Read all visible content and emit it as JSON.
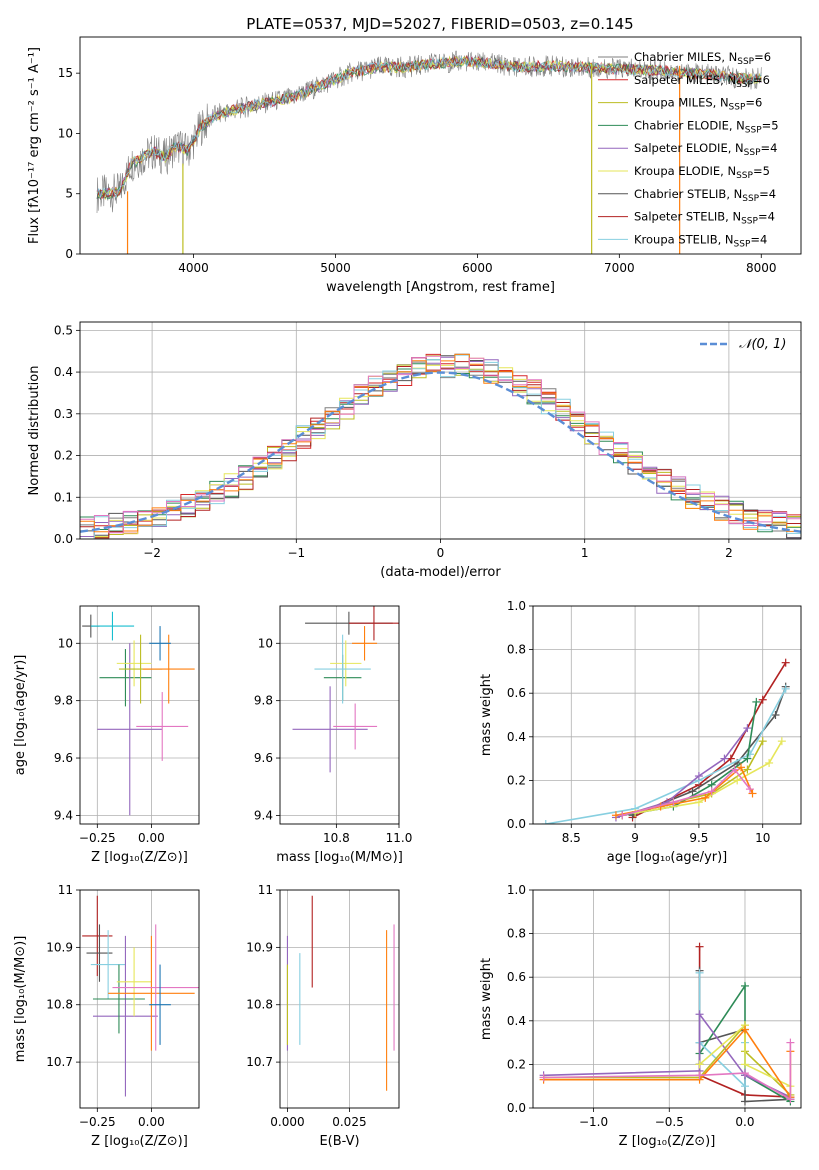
{
  "colors": {
    "c1": "#7f7f7f",
    "c2": "#d62728",
    "c3": "#bcbd22",
    "c4": "#2e8b57",
    "c5": "#9467bd",
    "c6": "#e6e65a",
    "c7": "#555555",
    "c8": "#b22222",
    "c9": "#87cfe0",
    "c10": "#ff7f0e",
    "c11": "#e377c2",
    "c12": "#17becf",
    "c13": "#1f77b4",
    "nline": "#5b8ed6"
  },
  "chart_data": [
    {
      "id": "spectrum",
      "type": "line",
      "title": "PLATE=0537, MJD=52027, FIBERID=0503, z=0.145",
      "xlabel": "wavelength [Angstrom, rest frame]",
      "ylabel": "Flux [fλ10⁻¹⁷ erg cm⁻² s⁻¹ A⁻¹]",
      "xlim": [
        3200,
        8280
      ],
      "ylim": [
        0,
        18
      ],
      "xticks": [
        4000,
        5000,
        6000,
        7000,
        8000
      ],
      "yticks": [
        0,
        5,
        10,
        15
      ],
      "legend": "upper right",
      "series": [
        {
          "name": "Chabrier MILES, N_SSP=6",
          "color": "c1"
        },
        {
          "name": "Salpeter MILES, N_SSP=6",
          "color": "c2"
        },
        {
          "name": "Kroupa MILES, N_SSP=6",
          "color": "c3"
        },
        {
          "name": "Chabrier ELODIE, N_SSP=5",
          "color": "c4"
        },
        {
          "name": "Salpeter ELODIE, N_SSP=4",
          "color": "c5"
        },
        {
          "name": "Kroupa ELODIE, N_SSP=5",
          "color": "c6"
        },
        {
          "name": "Chabrier STELIB, N_SSP=4",
          "color": "c7"
        },
        {
          "name": "Salpeter STELIB, N_SSP=4",
          "color": "c8"
        },
        {
          "name": "Kroupa STELIB, N_SSP=4",
          "color": "c9"
        }
      ],
      "envelope": {
        "x": [
          3320,
          3400,
          3480,
          3560,
          3640,
          3720,
          3800,
          3880,
          3960,
          4050,
          4150,
          4300,
          4500,
          4700,
          4900,
          5100,
          5300,
          5500,
          5700,
          5900,
          6100,
          6300,
          6500,
          6700,
          6900,
          7100,
          7300,
          7500,
          7700,
          7900,
          8000
        ],
        "y": [
          5.0,
          5.0,
          5.2,
          7.5,
          8.0,
          8.5,
          8.0,
          9.0,
          8.5,
          10.5,
          11.5,
          12.0,
          12.5,
          13.0,
          14.0,
          15.0,
          15.5,
          15.5,
          15.8,
          16.0,
          15.8,
          15.5,
          15.6,
          15.5,
          15.4,
          15.3,
          15.2,
          15.0,
          14.8,
          14.5,
          14.6
        ]
      },
      "drops": [
        {
          "x": 3535,
          "y_top": 5.2,
          "color": "c10"
        },
        {
          "x": 3925,
          "y_top": 7.5,
          "color": "c3"
        },
        {
          "x": 6805,
          "y_top": 15.8,
          "color": "c3"
        },
        {
          "x": 7425,
          "y_top": 15.6,
          "color": "c10"
        }
      ]
    },
    {
      "id": "residuals",
      "type": "step",
      "xlabel": "(data-model)/error",
      "ylabel": "Normed distribution",
      "xlim": [
        -2.5,
        2.5
      ],
      "ylim": [
        0,
        0.52
      ],
      "xticks": [
        -2,
        -1,
        0,
        1,
        2
      ],
      "yticks": [
        0.0,
        0.1,
        0.2,
        0.3,
        0.4,
        0.5
      ],
      "legend": "upper right",
      "reference": {
        "name": "𝒩(0, 1)",
        "mean": 0,
        "sigma": 1,
        "color": "nline"
      },
      "bin_width": 0.1
    },
    {
      "id": "age-vs-z",
      "type": "errorbar",
      "xlabel": "Z [log₁₀(Z/Z⊙)]",
      "ylabel": "age  [log₁₀(age/yr)]",
      "xlim": [
        -0.33,
        0.22
      ],
      "ylim": [
        9.37,
        10.13
      ],
      "xticks": [
        -0.25,
        0.0
      ],
      "xticklabels": [
        "−0.25",
        "0.00"
      ],
      "yticks": [
        9.4,
        9.6,
        9.8,
        10.0
      ],
      "points": [
        {
          "x": -0.28,
          "y": 10.06,
          "xerr": 0.04,
          "yerr": 0.04,
          "color": "c7"
        },
        {
          "x": -0.18,
          "y": 10.06,
          "xerr": 0.1,
          "yerr": 0.05,
          "color": "c12"
        },
        {
          "x": -0.12,
          "y": 9.88,
          "xerr": 0.12,
          "yerr": 0.1,
          "color": "c4"
        },
        {
          "x": -0.1,
          "y": 9.7,
          "xerr": 0.15,
          "yerr": 0.3,
          "color": "c5"
        },
        {
          "x": -0.08,
          "y": 9.93,
          "xerr": 0.08,
          "yerr": 0.08,
          "color": "c6"
        },
        {
          "x": -0.05,
          "y": 9.91,
          "xerr": 0.1,
          "yerr": 0.12,
          "color": "c3"
        },
        {
          "x": 0.08,
          "y": 9.91,
          "xerr": 0.12,
          "yerr": 0.12,
          "color": "c10"
        },
        {
          "x": 0.05,
          "y": 9.71,
          "xerr": 0.12,
          "yerr": 0.12,
          "color": "c11"
        },
        {
          "x": 0.04,
          "y": 10.0,
          "xerr": 0.05,
          "yerr": 0.06,
          "color": "c13"
        }
      ]
    },
    {
      "id": "age-vs-mass",
      "type": "errorbar",
      "xlabel": "mass [log₁₀(M/M⊙)]",
      "ylabel": "",
      "xlim": [
        10.62,
        11.0
      ],
      "ylim": [
        9.37,
        10.13
      ],
      "xticks": [
        10.8,
        11.0
      ],
      "xticklabels": [
        "10.8",
        "11.0"
      ],
      "yticks": [
        9.4,
        9.6,
        9.8,
        10.0
      ],
      "points": [
        {
          "x": 10.84,
          "y": 10.07,
          "xerr": 0.14,
          "yerr": 0.04,
          "color": "c7"
        },
        {
          "x": 10.92,
          "y": 10.07,
          "xerr": 0.08,
          "yerr": 0.06,
          "color": "c8"
        },
        {
          "x": 10.78,
          "y": 9.7,
          "xerr": 0.12,
          "yerr": 0.15,
          "color": "c5"
        },
        {
          "x": 10.82,
          "y": 9.88,
          "xerr": 0.06,
          "yerr": 0.08,
          "color": "c4"
        },
        {
          "x": 10.83,
          "y": 9.93,
          "xerr": 0.05,
          "yerr": 0.08,
          "color": "c6"
        },
        {
          "x": 10.82,
          "y": 9.91,
          "xerr": 0.09,
          "yerr": 0.12,
          "color": "c9"
        },
        {
          "x": 10.86,
          "y": 9.71,
          "xerr": 0.07,
          "yerr": 0.08,
          "color": "c11"
        },
        {
          "x": 10.89,
          "y": 10.0,
          "xerr": 0.04,
          "yerr": 0.06,
          "color": "c10"
        }
      ]
    },
    {
      "id": "weight-vs-age",
      "type": "line",
      "xlabel": "age  [log₁₀(age/yr)]",
      "ylabel": "mass weight",
      "xlim": [
        8.2,
        10.3
      ],
      "ylim": [
        0,
        1.0
      ],
      "xticks": [
        8.5,
        9.0,
        9.5,
        10.0
      ],
      "yticks": [
        0.0,
        0.2,
        0.4,
        0.6,
        0.8,
        1.0
      ],
      "series": [
        {
          "color": "c8",
          "x": [
            8.98,
            9.5,
            9.75,
            10.0,
            10.18
          ],
          "y": [
            0.03,
            0.18,
            0.3,
            0.57,
            0.74
          ]
        },
        {
          "color": "c7",
          "x": [
            8.98,
            9.45,
            9.8,
            10.1,
            10.18
          ],
          "y": [
            0.04,
            0.15,
            0.28,
            0.5,
            0.63
          ]
        },
        {
          "color": "c9",
          "x": [
            8.3,
            9.0,
            9.5,
            9.9,
            10.18
          ],
          "y": [
            0.0,
            0.07,
            0.2,
            0.32,
            0.62
          ]
        },
        {
          "color": "c5",
          "x": [
            8.85,
            9.25,
            9.5,
            9.7,
            9.88
          ],
          "y": [
            0.03,
            0.1,
            0.22,
            0.3,
            0.44
          ]
        },
        {
          "color": "c4",
          "x": [
            8.9,
            9.3,
            9.6,
            9.88,
            9.95
          ],
          "y": [
            0.04,
            0.08,
            0.18,
            0.3,
            0.56
          ]
        },
        {
          "color": "c3",
          "x": [
            8.9,
            9.3,
            9.6,
            9.88,
            10.0
          ],
          "y": [
            0.04,
            0.1,
            0.14,
            0.25,
            0.38
          ]
        },
        {
          "color": "c6",
          "x": [
            9.0,
            9.5,
            9.8,
            10.05,
            10.15
          ],
          "y": [
            0.05,
            0.1,
            0.2,
            0.28,
            0.38
          ]
        },
        {
          "color": "c10",
          "x": [
            8.85,
            9.2,
            9.55,
            9.83,
            9.92
          ],
          "y": [
            0.04,
            0.08,
            0.12,
            0.26,
            0.14
          ]
        },
        {
          "color": "c11",
          "x": [
            8.9,
            9.3,
            9.6,
            9.78,
            9.9
          ],
          "y": [
            0.04,
            0.1,
            0.15,
            0.25,
            0.16
          ]
        }
      ]
    },
    {
      "id": "mass-vs-z",
      "type": "errorbar",
      "xlabel": "Z [log₁₀(Z/Z⊙)]",
      "ylabel": "mass [log₁₀(M/M⊙)]",
      "xlim": [
        -0.33,
        0.22
      ],
      "ylim": [
        10.62,
        11.0
      ],
      "xticks": [
        -0.25,
        0.0
      ],
      "xticklabels": [
        "−0.25",
        "0.00"
      ],
      "yticks": [
        10.7,
        10.8,
        10.9,
        11.0
      ],
      "points": [
        {
          "x": -0.25,
          "y": 10.92,
          "xerr": 0.07,
          "yerr": 0.07,
          "color": "c8"
        },
        {
          "x": -0.24,
          "y": 10.89,
          "xerr": 0.06,
          "yerr": 0.05,
          "color": "c7"
        },
        {
          "x": -0.2,
          "y": 10.87,
          "xerr": 0.08,
          "yerr": 0.06,
          "color": "c9"
        },
        {
          "x": -0.12,
          "y": 10.78,
          "xerr": 0.15,
          "yerr": 0.14,
          "color": "c5"
        },
        {
          "x": -0.15,
          "y": 10.81,
          "xerr": 0.12,
          "yerr": 0.06,
          "color": "c4"
        },
        {
          "x": -0.08,
          "y": 10.84,
          "xerr": 0.08,
          "yerr": 0.06,
          "color": "c6"
        },
        {
          "x": 0.0,
          "y": 10.82,
          "xerr": 0.2,
          "yerr": 0.1,
          "color": "c10"
        },
        {
          "x": 0.02,
          "y": 10.83,
          "xerr": 0.2,
          "yerr": 0.11,
          "color": "c11"
        },
        {
          "x": 0.04,
          "y": 10.8,
          "xerr": 0.05,
          "yerr": 0.07,
          "color": "c13"
        }
      ]
    },
    {
      "id": "mass-vs-ebv",
      "type": "errorbar",
      "xlabel": "E(B-V)",
      "ylabel": "",
      "xlim": [
        -0.003,
        0.045
      ],
      "ylim": [
        10.62,
        11.0
      ],
      "xticks": [
        0.0,
        0.025
      ],
      "xticklabels": [
        "0.000",
        "0.025"
      ],
      "yticks": [
        10.7,
        10.8,
        10.9,
        11.0
      ],
      "points": [
        {
          "x": 0.0,
          "y": 10.82,
          "xerr": 0.0,
          "yerr": 0.1,
          "color": "c5"
        },
        {
          "x": 0.0,
          "y": 10.8,
          "xerr": 0.0,
          "yerr": 0.07,
          "color": "c3"
        },
        {
          "x": 0.005,
          "y": 10.81,
          "xerr": 0.0,
          "yerr": 0.08,
          "color": "c9"
        },
        {
          "x": 0.01,
          "y": 10.91,
          "xerr": 0.0,
          "yerr": 0.08,
          "color": "c8"
        },
        {
          "x": 0.04,
          "y": 10.79,
          "xerr": 0.0,
          "yerr": 0.14,
          "color": "c10"
        },
        {
          "x": 0.043,
          "y": 10.83,
          "xerr": 0.0,
          "yerr": 0.11,
          "color": "c11"
        }
      ]
    },
    {
      "id": "weight-vs-z",
      "type": "line",
      "xlabel": "Z [log₁₀(Z/Z⊙)]",
      "ylabel": "mass weight",
      "xlim": [
        -1.4,
        0.37
      ],
      "ylim": [
        0,
        1.0
      ],
      "xticks": [
        -1.0,
        -0.5,
        0.0
      ],
      "xticklabels": [
        "−1.0",
        "−0.5",
        "0.0"
      ],
      "yticks": [
        0.0,
        0.2,
        0.4,
        0.6,
        0.8,
        1.0
      ],
      "series": [
        {
          "color": "c8",
          "x": [
            -0.3,
            -0.3,
            -0.3,
            0.0,
            0.3
          ],
          "y": [
            0.74,
            0.2,
            0.15,
            0.06,
            0.05
          ]
        },
        {
          "color": "c7",
          "x": [
            -0.3,
            -0.3,
            0.0,
            0.0,
            0.3
          ],
          "y": [
            0.63,
            0.3,
            0.36,
            0.03,
            0.04
          ]
        },
        {
          "color": "c4",
          "x": [
            -0.3,
            -0.3,
            0.0,
            0.0,
            0.3
          ],
          "y": [
            0.2,
            0.25,
            0.56,
            0.15,
            0.03
          ]
        },
        {
          "color": "c9",
          "x": [
            -0.3,
            -0.3,
            0.0,
            0.0
          ],
          "y": [
            0.62,
            0.3,
            0.1,
            0.3
          ]
        },
        {
          "color": "c5",
          "x": [
            -1.33,
            -0.3,
            -0.3,
            0.0,
            0.3
          ],
          "y": [
            0.15,
            0.17,
            0.43,
            0.15,
            0.05
          ]
        },
        {
          "color": "c3",
          "x": [
            -1.33,
            -0.3,
            0.0,
            0.0,
            0.3
          ],
          "y": [
            0.14,
            0.14,
            0.38,
            0.26,
            0.06
          ]
        },
        {
          "color": "c6",
          "x": [
            -0.3,
            0.0,
            0.0,
            0.3
          ],
          "y": [
            0.2,
            0.38,
            0.2,
            0.1
          ]
        },
        {
          "color": "c10",
          "x": [
            -1.33,
            -0.3,
            0.0,
            0.3,
            0.3
          ],
          "y": [
            0.13,
            0.13,
            0.36,
            0.05,
            0.26
          ]
        },
        {
          "color": "c11",
          "x": [
            -1.33,
            -0.3,
            0.0,
            0.3,
            0.3
          ],
          "y": [
            0.14,
            0.15,
            0.16,
            0.04,
            0.3
          ]
        }
      ]
    }
  ]
}
